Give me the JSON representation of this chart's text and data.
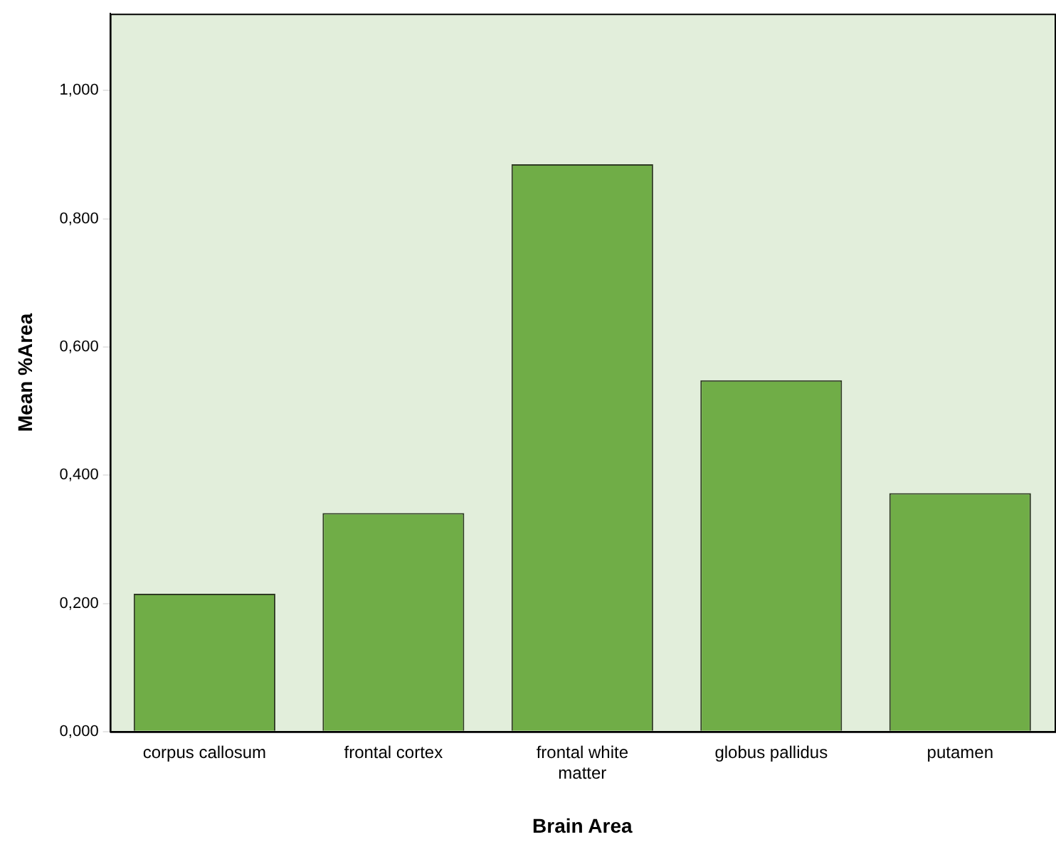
{
  "chart_data": {
    "type": "bar",
    "xlabel": "Brain Area",
    "ylabel": "Mean %Area",
    "categories": [
      "corpus callosum",
      "frontal cortex",
      "frontal white matter",
      "globus pallidus",
      "putamen"
    ],
    "values": [
      0.215,
      0.341,
      0.885,
      0.548,
      0.372
    ],
    "color": "#70ad47",
    "ylim": [
      0,
      1.12
    ],
    "yticks": [
      {
        "value": 0,
        "label": "0,000"
      },
      {
        "value": 0.2,
        "label": "0,200"
      },
      {
        "value": 0.4,
        "label": "0,400"
      },
      {
        "value": 0.6,
        "label": "0,600"
      },
      {
        "value": 0.8,
        "label": "0,800"
      },
      {
        "value": 1,
        "label": "1,000"
      }
    ],
    "grid": false,
    "legend": false
  }
}
